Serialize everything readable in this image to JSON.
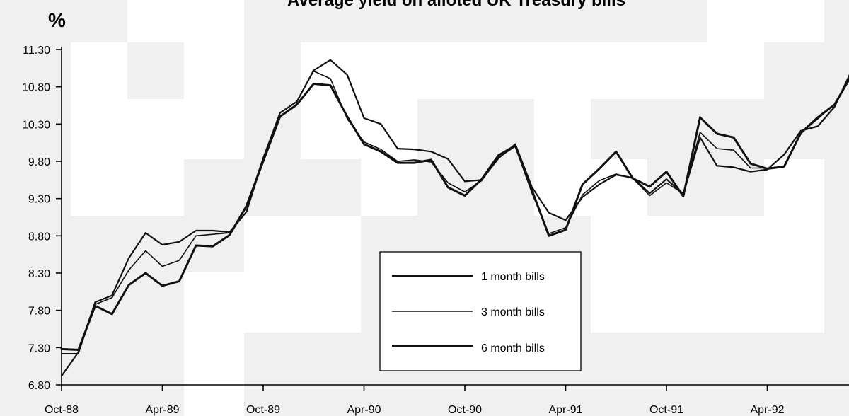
{
  "chart_data": {
    "type": "line",
    "title": "Average yield on alloted UK Treasury bills",
    "ylabel": "%",
    "xlabel": "",
    "ylim": [
      6.8,
      11.3
    ],
    "yticks": [
      "6.80",
      "7.30",
      "7.80",
      "8.30",
      "8.80",
      "9.30",
      "9.80",
      "10.30",
      "10.80",
      "11.30"
    ],
    "xtick_labels": [
      "Oct-88",
      "Apr-89",
      "Oct-89",
      "Apr-90",
      "Oct-90",
      "Apr-91",
      "Oct-91",
      "Apr-92"
    ],
    "x_start": "Oct-88",
    "x_end": "Dec-92",
    "grid": false,
    "legend_position": "bottom-center",
    "series": [
      {
        "name": "1 month bills",
        "line_width": 3,
        "values": [
          7.28,
          7.27,
          7.86,
          7.75,
          8.14,
          8.3,
          8.13,
          8.19,
          8.67,
          8.66,
          8.81,
          9.2,
          9.8,
          10.4,
          10.56,
          10.84,
          10.82,
          10.4,
          10.03,
          9.93,
          9.78,
          9.78,
          9.82,
          9.45,
          9.34,
          9.56,
          9.88,
          10.01,
          9.41,
          8.8,
          8.88,
          9.49,
          9.7,
          9.93,
          9.57,
          9.46,
          9.66,
          9.33,
          10.39,
          10.17,
          10.12,
          9.77,
          9.7,
          9.73,
          10.18,
          10.39,
          10.56,
          10.95
        ]
      },
      {
        "name": "3 month bills",
        "line_width": 1.6,
        "values": [
          7.22,
          7.22,
          7.88,
          7.97,
          8.34,
          8.6,
          8.39,
          8.47,
          8.8,
          8.82,
          8.84,
          9.18,
          9.85,
          10.45,
          10.6,
          11.01,
          10.91,
          10.37,
          10.06,
          9.96,
          9.8,
          9.82,
          9.79,
          9.51,
          9.39,
          9.54,
          9.85,
          10.0,
          9.37,
          8.83,
          8.91,
          9.35,
          9.54,
          9.63,
          9.57,
          9.34,
          9.51,
          9.37,
          10.19,
          9.97,
          9.95,
          9.71,
          9.71,
          9.73,
          10.18,
          10.37,
          10.57,
          10.93
        ]
      },
      {
        "name": "6 month bills",
        "line_width": 2.2,
        "values": [
          6.92,
          7.24,
          7.91,
          8.0,
          8.5,
          8.84,
          8.68,
          8.72,
          8.87,
          8.87,
          8.85,
          9.12,
          9.83,
          10.45,
          10.6,
          11.02,
          11.16,
          10.96,
          10.38,
          10.3,
          9.97,
          9.96,
          9.93,
          9.83,
          9.53,
          9.55,
          9.84,
          10.03,
          9.45,
          9.11,
          9.01,
          9.32,
          9.49,
          9.62,
          9.58,
          9.37,
          9.56,
          9.36,
          10.12,
          9.74,
          9.72,
          9.66,
          9.69,
          9.89,
          10.21,
          10.27,
          10.53,
          11.01
        ]
      }
    ]
  }
}
